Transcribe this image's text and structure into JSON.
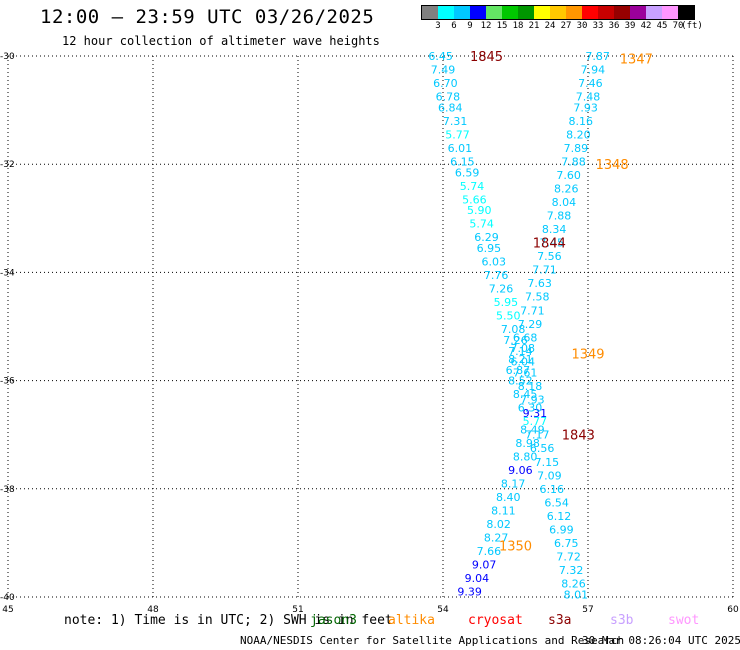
{
  "header": {
    "title": "12:00 — 23:59 UTC 03/26/2025",
    "subtitle": "12 hour collection of altimeter wave heights"
  },
  "color_scale": {
    "unit": "(ft)",
    "swatches": [
      "#808080",
      "#00ffff",
      "#00c8ff",
      "#0000ff",
      "#64e664",
      "#00c800",
      "#009600",
      "#ffff00",
      "#ffc800",
      "#ff9600",
      "#ff0000",
      "#c80000",
      "#960000",
      "#9b009b",
      "#c8a0ff",
      "#ff96ff",
      "#000000"
    ],
    "labels": [
      "3",
      "6",
      "9",
      "12",
      "15",
      "18",
      "21",
      "24",
      "27",
      "30",
      "33",
      "36",
      "39",
      "42",
      "45",
      "70"
    ]
  },
  "map": {
    "lon_ticks": [
      "45",
      "48",
      "51",
      "54",
      "57",
      "60"
    ],
    "lat_ticks": [
      "-30",
      "-32",
      "-34",
      "-36",
      "-38",
      "-40"
    ]
  },
  "chart_data": {
    "type": "scatter",
    "xlim": [
      45,
      60
    ],
    "ylim": [
      -40,
      -30
    ],
    "grid": true,
    "pass_labels": [
      {
        "label": "1845",
        "lon": 54.9,
        "lat": -30.0,
        "color": "#8b0000"
      },
      {
        "label": "1347",
        "lon": 58.0,
        "lat": -30.05,
        "color": "#ff8c00"
      },
      {
        "label": "1348",
        "lon": 57.5,
        "lat": -32.0,
        "color": "#ff8c00"
      },
      {
        "label": "1844",
        "lon": 56.2,
        "lat": -33.45,
        "color": "#8b0000"
      },
      {
        "label": "1349",
        "lon": 57.0,
        "lat": -35.5,
        "color": "#ff8c00"
      },
      {
        "label": "1843",
        "lon": 56.8,
        "lat": -37.0,
        "color": "#8b0000"
      },
      {
        "label": "1350",
        "lon": 55.5,
        "lat": -39.05,
        "color": "#ff8c00"
      }
    ],
    "tracks": [
      {
        "points": [
          {
            "lon": 53.95,
            "lat": -30.0,
            "v": "6.45"
          },
          {
            "lon": 54.0,
            "lat": -30.25,
            "v": "7.49"
          },
          {
            "lon": 54.05,
            "lat": -30.5,
            "v": "6.70"
          },
          {
            "lon": 54.1,
            "lat": -30.75,
            "v": "6.78"
          },
          {
            "lon": 54.15,
            "lat": -30.95,
            "v": "6.84"
          },
          {
            "lon": 54.25,
            "lat": -31.2,
            "v": "7.31"
          },
          {
            "lon": 54.3,
            "lat": -31.45,
            "v": "5.77"
          },
          {
            "lon": 54.35,
            "lat": -31.7,
            "v": "6.01"
          },
          {
            "lon": 54.4,
            "lat": -31.95,
            "v": "6.15"
          },
          {
            "lon": 54.5,
            "lat": -32.15,
            "v": "6.59"
          },
          {
            "lon": 54.6,
            "lat": -32.4,
            "v": "5.74"
          },
          {
            "lon": 54.65,
            "lat": -32.65,
            "v": "5.66"
          },
          {
            "lon": 54.75,
            "lat": -32.85,
            "v": "5.90"
          },
          {
            "lon": 54.8,
            "lat": -33.1,
            "v": "5.74"
          },
          {
            "lon": 54.9,
            "lat": -33.35,
            "v": "6.29"
          },
          {
            "lon": 54.95,
            "lat": -33.55,
            "v": "6.95"
          },
          {
            "lon": 55.05,
            "lat": -33.8,
            "v": "6.03"
          },
          {
            "lon": 55.1,
            "lat": -34.05,
            "v": "7.76"
          },
          {
            "lon": 55.2,
            "lat": -34.3,
            "v": "7.26"
          },
          {
            "lon": 55.3,
            "lat": -34.55,
            "v": "5.95"
          },
          {
            "lon": 55.35,
            "lat": -34.8,
            "v": "5.50"
          },
          {
            "lon": 55.45,
            "lat": -35.05,
            "v": "7.08"
          },
          {
            "lon": 55.5,
            "lat": -35.25,
            "v": "7.26"
          },
          {
            "lon": 55.6,
            "lat": -35.45,
            "v": "7.14"
          },
          {
            "lon": 55.65,
            "lat": -35.65,
            "v": "6.04"
          },
          {
            "lon": 55.7,
            "lat": -35.85,
            "v": "7.61"
          },
          {
            "lon": 55.8,
            "lat": -36.1,
            "v": "8.18"
          },
          {
            "lon": 55.85,
            "lat": -36.35,
            "v": "7.93"
          },
          {
            "lon": 55.9,
            "lat": -36.6,
            "v": "9.31"
          },
          {
            "lon": 55.85,
            "lat": -36.9,
            "v": "8.49"
          },
          {
            "lon": 55.75,
            "lat": -37.15,
            "v": "8.98"
          },
          {
            "lon": 55.7,
            "lat": -37.4,
            "v": "8.80"
          },
          {
            "lon": 55.6,
            "lat": -37.65,
            "v": "9.06"
          },
          {
            "lon": 55.45,
            "lat": -37.9,
            "v": "8.17"
          },
          {
            "lon": 55.35,
            "lat": -38.15,
            "v": "8.40"
          },
          {
            "lon": 55.25,
            "lat": -38.4,
            "v": "8.11"
          },
          {
            "lon": 55.15,
            "lat": -38.65,
            "v": "8.02"
          },
          {
            "lon": 55.1,
            "lat": -38.9,
            "v": "8.27"
          },
          {
            "lon": 54.95,
            "lat": -39.15,
            "v": "7.66"
          },
          {
            "lon": 54.85,
            "lat": -39.4,
            "v": "9.07"
          },
          {
            "lon": 54.7,
            "lat": -39.65,
            "v": "9.04"
          },
          {
            "lon": 54.55,
            "lat": -39.9,
            "v": "9.39"
          }
        ]
      },
      {
        "points": [
          {
            "lon": 57.2,
            "lat": -30.0,
            "v": "7.87"
          },
          {
            "lon": 57.1,
            "lat": -30.25,
            "v": "7.94"
          },
          {
            "lon": 57.05,
            "lat": -30.5,
            "v": "7.46"
          },
          {
            "lon": 57.0,
            "lat": -30.75,
            "v": "7.48"
          },
          {
            "lon": 56.95,
            "lat": -30.95,
            "v": "7.93"
          },
          {
            "lon": 56.85,
            "lat": -31.2,
            "v": "8.16"
          },
          {
            "lon": 56.8,
            "lat": -31.45,
            "v": "8.20"
          },
          {
            "lon": 56.75,
            "lat": -31.7,
            "v": "7.89"
          },
          {
            "lon": 56.7,
            "lat": -31.95,
            "v": "7.88"
          },
          {
            "lon": 56.6,
            "lat": -32.2,
            "v": "7.60"
          },
          {
            "lon": 56.55,
            "lat": -32.45,
            "v": "8.26"
          },
          {
            "lon": 56.5,
            "lat": -32.7,
            "v": "8.04"
          },
          {
            "lon": 56.4,
            "lat": -32.95,
            "v": "7.88"
          },
          {
            "lon": 56.3,
            "lat": -33.2,
            "v": "8.34"
          },
          {
            "lon": 56.25,
            "lat": -33.45,
            "v": "7.45"
          },
          {
            "lon": 56.2,
            "lat": -33.7,
            "v": "7.56"
          },
          {
            "lon": 56.1,
            "lat": -33.95,
            "v": "7.71"
          },
          {
            "lon": 56.0,
            "lat": -34.2,
            "v": "7.63"
          },
          {
            "lon": 55.95,
            "lat": -34.45,
            "v": "7.58"
          },
          {
            "lon": 55.85,
            "lat": -34.7,
            "v": "7.71"
          },
          {
            "lon": 55.8,
            "lat": -34.95,
            "v": "7.29"
          },
          {
            "lon": 55.7,
            "lat": -35.2,
            "v": "6.68"
          },
          {
            "lon": 55.65,
            "lat": -35.4,
            "v": "7.08"
          },
          {
            "lon": 55.6,
            "lat": -35.6,
            "v": "8.21"
          },
          {
            "lon": 55.55,
            "lat": -35.8,
            "v": "6.87"
          },
          {
            "lon": 55.6,
            "lat": -36.0,
            "v": "8.52"
          },
          {
            "lon": 55.7,
            "lat": -36.25,
            "v": "8.45"
          },
          {
            "lon": 55.8,
            "lat": -36.5,
            "v": "6.30"
          },
          {
            "lon": 55.9,
            "lat": -36.75,
            "v": "5.77"
          },
          {
            "lon": 55.95,
            "lat": -37.0,
            "v": "7.17"
          },
          {
            "lon": 56.05,
            "lat": -37.25,
            "v": "6.56"
          },
          {
            "lon": 56.15,
            "lat": -37.5,
            "v": "7.15"
          },
          {
            "lon": 56.2,
            "lat": -37.75,
            "v": "7.09"
          },
          {
            "lon": 56.25,
            "lat": -38.0,
            "v": "6.16"
          },
          {
            "lon": 56.35,
            "lat": -38.25,
            "v": "6.54"
          },
          {
            "lon": 56.4,
            "lat": -38.5,
            "v": "6.12"
          },
          {
            "lon": 56.45,
            "lat": -38.75,
            "v": "6.99"
          },
          {
            "lon": 56.55,
            "lat": -39.0,
            "v": "6.75"
          },
          {
            "lon": 56.6,
            "lat": -39.25,
            "v": "7.72"
          },
          {
            "lon": 56.65,
            "lat": -39.5,
            "v": "7.32"
          },
          {
            "lon": 56.7,
            "lat": -39.75,
            "v": "8.26"
          },
          {
            "lon": 56.75,
            "lat": -39.95,
            "v": "8.01"
          }
        ]
      }
    ]
  },
  "footer": {
    "note": "note: 1) Time is in UTC; 2) SWH is in feet",
    "satellites": [
      {
        "name": "jason3",
        "color": "#006400"
      },
      {
        "name": "altika",
        "color": "#ff8c00"
      },
      {
        "name": "cryosat",
        "color": "#ff0000"
      },
      {
        "name": "s3a",
        "color": "#8b0000"
      },
      {
        "name": "s3b",
        "color": "#c8a0ff"
      },
      {
        "name": "swot",
        "color": "#ff96ff"
      }
    ],
    "credit": "NOAA/NESDIS Center for Satellite Applications and Research",
    "timestamp": "30 Mar 08:26:04 UTC 2025"
  }
}
